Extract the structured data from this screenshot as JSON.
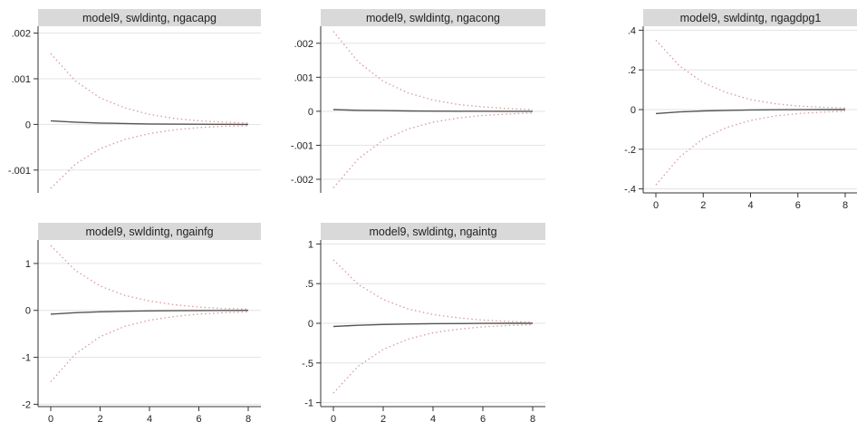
{
  "chart_data": [
    {
      "type": "line",
      "title": "model9, swldintg, ngacapg",
      "x": [
        0,
        1,
        2,
        3,
        4,
        5,
        6,
        7,
        8
      ],
      "ylim": [
        -0.0015,
        0.00215
      ],
      "yticks": [
        0.002,
        0.001,
        0,
        -0.001
      ],
      "ytick_labels": [
        ".002",
        ".001",
        "0",
        "-.001"
      ],
      "xticks": [],
      "xtick_labels": [],
      "series": [
        {
          "role": "irf",
          "style": "solid",
          "values": [
            8e-05,
            5e-05,
            3e-05,
            2e-05,
            1e-05,
            5e-06,
            3e-06,
            1e-06,
            0
          ]
        },
        {
          "role": "upper",
          "style": "dotted",
          "values": [
            0.00155,
            0.00095,
            0.00058,
            0.00036,
            0.00022,
            0.00013,
            8e-05,
            5e-05,
            3e-05
          ]
        },
        {
          "role": "lower",
          "style": "dotted",
          "values": [
            -0.0014,
            -0.00087,
            -0.00053,
            -0.00033,
            -0.0002,
            -0.00012,
            -7e-05,
            -4e-05,
            -3e-05
          ]
        }
      ]
    },
    {
      "type": "line",
      "title": "model9, swldintg, ngacong",
      "x": [
        0,
        1,
        2,
        3,
        4,
        5,
        6,
        7,
        8
      ],
      "ylim": [
        -0.0024,
        0.0025
      ],
      "yticks": [
        0.002,
        0.001,
        0,
        -0.001,
        -0.002
      ],
      "ytick_labels": [
        ".002",
        ".001",
        "0",
        "-.001",
        "-.002"
      ],
      "xticks": [],
      "xtick_labels": [],
      "series": [
        {
          "role": "irf",
          "style": "solid",
          "values": [
            5e-05,
            3e-05,
            2e-05,
            1e-05,
            5e-06,
            3e-06,
            1e-06,
            0,
            0
          ]
        },
        {
          "role": "upper",
          "style": "dotted",
          "values": [
            0.00235,
            0.00145,
            0.00088,
            0.00054,
            0.00033,
            0.0002,
            0.00013,
            8e-05,
            5e-05
          ]
        },
        {
          "role": "lower",
          "style": "dotted",
          "values": [
            -0.00225,
            -0.0014,
            -0.00085,
            -0.00052,
            -0.00032,
            -0.0002,
            -0.00012,
            -8e-05,
            -5e-05
          ]
        }
      ]
    },
    {
      "type": "line",
      "title": "model9, swldintg, ngagdpg1",
      "x": [
        0,
        1,
        2,
        3,
        4,
        5,
        6,
        7,
        8
      ],
      "ylim": [
        -0.42,
        0.42
      ],
      "yticks": [
        0.4,
        0.2,
        0,
        -0.2,
        -0.4
      ],
      "ytick_labels": [
        ".4",
        ".2",
        "0",
        "-.2",
        "-.4"
      ],
      "xticks": [
        0,
        2,
        4,
        6,
        8
      ],
      "xtick_labels": [
        "0",
        "2",
        "4",
        "6",
        "8"
      ],
      "series": [
        {
          "role": "irf",
          "style": "solid",
          "values": [
            -0.02,
            -0.012,
            -0.007,
            -0.004,
            -0.002,
            -0.001,
            -0.0005,
            0,
            0
          ]
        },
        {
          "role": "upper",
          "style": "dotted",
          "values": [
            0.35,
            0.22,
            0.135,
            0.085,
            0.05,
            0.03,
            0.018,
            0.012,
            0.008
          ]
        },
        {
          "role": "lower",
          "style": "dotted",
          "values": [
            -0.38,
            -0.24,
            -0.145,
            -0.09,
            -0.055,
            -0.033,
            -0.02,
            -0.013,
            -0.008
          ]
        }
      ]
    },
    {
      "type": "line",
      "title": "model9, swldintg, ngainfg",
      "x": [
        0,
        1,
        2,
        3,
        4,
        5,
        6,
        7,
        8
      ],
      "ylim": [
        -2.05,
        1.5
      ],
      "yticks": [
        1,
        0,
        -1,
        -2
      ],
      "ytick_labels": [
        "1",
        "0",
        "-1",
        "-2"
      ],
      "xticks": [
        0,
        2,
        4,
        6,
        8
      ],
      "xtick_labels": [
        "0",
        "2",
        "4",
        "6",
        "8"
      ],
      "series": [
        {
          "role": "irf",
          "style": "solid",
          "values": [
            -0.08,
            -0.05,
            -0.03,
            -0.018,
            -0.01,
            -0.006,
            -0.003,
            -0.001,
            0
          ]
        },
        {
          "role": "upper",
          "style": "dotted",
          "values": [
            1.38,
            0.85,
            0.52,
            0.32,
            0.2,
            0.12,
            0.07,
            0.04,
            0.03
          ]
        },
        {
          "role": "lower",
          "style": "dotted",
          "values": [
            -1.52,
            -0.93,
            -0.56,
            -0.34,
            -0.21,
            -0.13,
            -0.08,
            -0.05,
            -0.03
          ]
        }
      ]
    },
    {
      "type": "line",
      "title": "model9, swldintg, ngaintg",
      "x": [
        0,
        1,
        2,
        3,
        4,
        5,
        6,
        7,
        8
      ],
      "ylim": [
        -1.05,
        1.05
      ],
      "yticks": [
        1,
        0.5,
        0,
        -0.5,
        -1
      ],
      "ytick_labels": [
        "1",
        ".5",
        "0",
        "-.5",
        "-1"
      ],
      "xticks": [
        0,
        2,
        4,
        6,
        8
      ],
      "xtick_labels": [
        "0",
        "2",
        "4",
        "6",
        "8"
      ],
      "series": [
        {
          "role": "irf",
          "style": "solid",
          "values": [
            -0.04,
            -0.025,
            -0.015,
            -0.009,
            -0.005,
            -0.003,
            -0.0015,
            0,
            0
          ]
        },
        {
          "role": "upper",
          "style": "dotted",
          "values": [
            0.8,
            0.49,
            0.3,
            0.18,
            0.11,
            0.07,
            0.04,
            0.025,
            0.015
          ]
        },
        {
          "role": "lower",
          "style": "dotted",
          "values": [
            -0.88,
            -0.54,
            -0.33,
            -0.2,
            -0.12,
            -0.075,
            -0.045,
            -0.028,
            -0.017
          ]
        }
      ]
    }
  ],
  "style": {
    "irf_color": "#555555",
    "band_color": "#d89a9a",
    "title_bar_color": "#d9d9d9",
    "grid_color": "#e3e3e3",
    "axis_color": "#333333"
  }
}
